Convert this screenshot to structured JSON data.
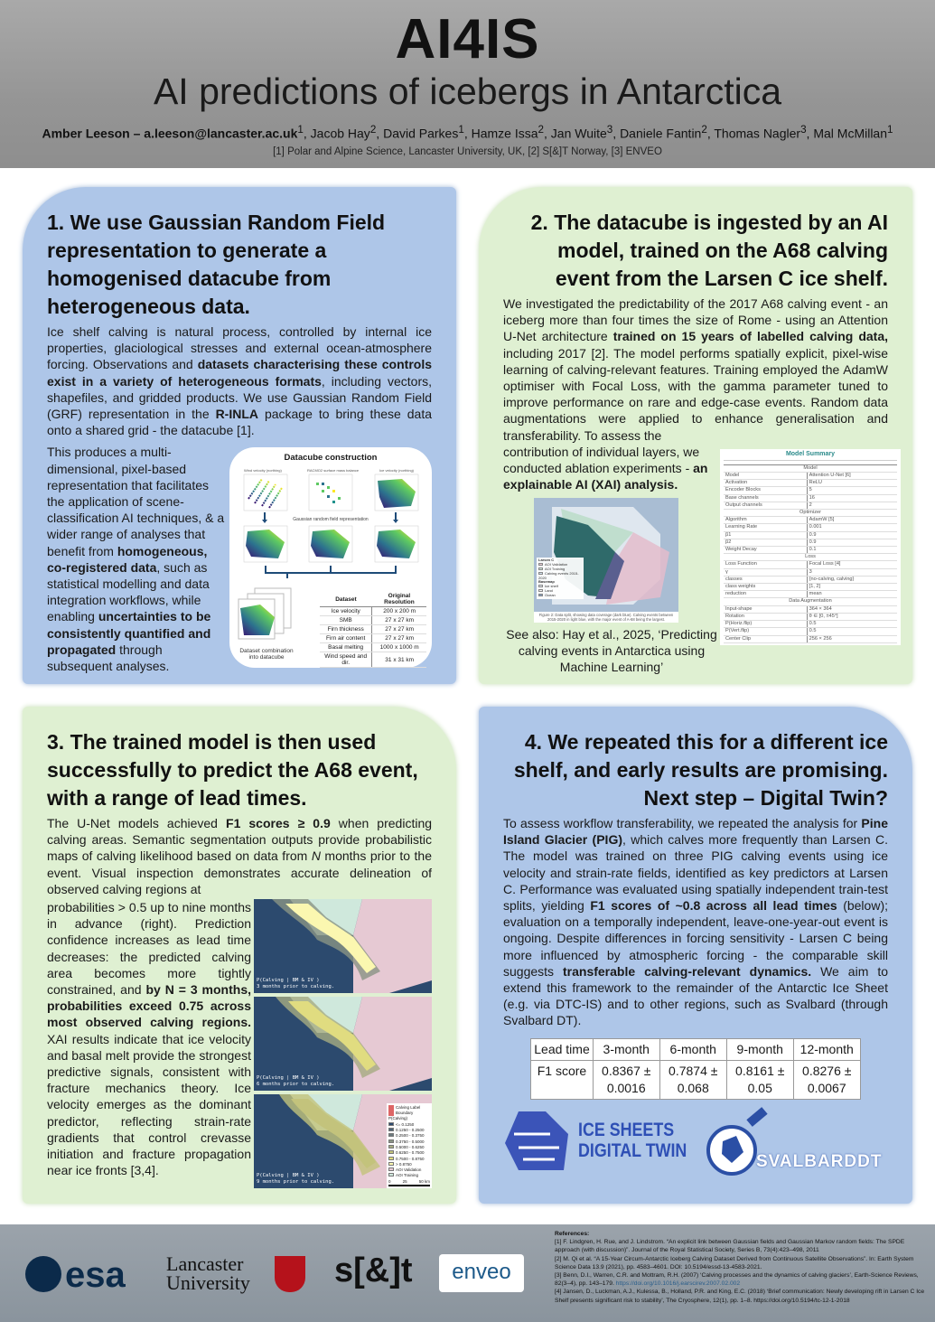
{
  "header": {
    "title": "AI4IS",
    "subtitle": "AI predictions of icebergs in Antarctica",
    "authors": [
      {
        "name": "Amber Leeson – a.leeson@lancaster.ac.uk",
        "sup": "1",
        "bold": true
      },
      {
        "name": "Jacob Hay",
        "sup": "2"
      },
      {
        "name": "David Parkes",
        "sup": "1"
      },
      {
        "name": "Hamze Issa",
        "sup": "2"
      },
      {
        "name": "Jan Wuite",
        "sup": "3"
      },
      {
        "name": "Daniele Fantin",
        "sup": "2"
      },
      {
        "name": "Thomas Nagler",
        "sup": "3"
      },
      {
        "name": "Mal McMillan",
        "sup": "1"
      }
    ],
    "affiliations": "[1] Polar and Alpine Science, Lancaster University, UK, [2] S[&]T Norway, [3] ENVEO"
  },
  "panel1": {
    "heading": "1. We use Gaussian Random Field representation to generate a homogenised datacube from heterogeneous data.",
    "para1": [
      {
        "t": "Ice shelf calving is natural process, controlled by internal ice properties, glaciological stresses and external ocean-atmosphere forcing. Observations and "
      },
      {
        "t": "datasets characterising these controls exist in a variety of heterogeneous formats",
        "b": true
      },
      {
        "t": ", including vectors, shapefiles, and gridded products. We use Gaussian Random Field (GRF) representation in the "
      },
      {
        "t": "R-INLA",
        "b": true
      },
      {
        "t": " package to bring these data onto a shared grid - the datacube [1]."
      }
    ],
    "para2": [
      {
        "t": "This produces a multi-dimensional, pixel-based representation that facilitates the application of scene-classification AI techniques, & a wider range of analyses that benefit from "
      },
      {
        "t": "homogeneous, co-registered data",
        "b": true
      },
      {
        "t": ", such as statistical modelling and data integration workflows, while enabling "
      },
      {
        "t": "uncertainties to be consistently quantified and propagated",
        "b": true
      },
      {
        "t": " through subsequent analyses."
      }
    ],
    "figure": {
      "title": "Datacube construction",
      "panels": [
        "Wind velocity (northing)",
        "RACMO2 surface mass balance",
        "Ice velocity (northing)"
      ],
      "grf_label": "Gaussian random field representation",
      "combo_label": "Dataset combination into datacube",
      "table": {
        "headers": [
          "Dataset",
          "Original Resolution"
        ],
        "rows": [
          [
            "Ice velocity",
            "200 x 200 m"
          ],
          [
            "SMB",
            "27 x 27 km"
          ],
          [
            "Firn thickness",
            "27 x 27 km"
          ],
          [
            "Firn air content",
            "27 x 27 km"
          ],
          [
            "Basal melting",
            "1000 x 1000 m"
          ],
          [
            "Wind speed and dir.",
            "31 x 31 km"
          ]
        ]
      }
    }
  },
  "panel2": {
    "heading": "2. The datacube is ingested by an AI model, trained on the A68 calving event from the Larsen C ice shelf.",
    "para1": [
      {
        "t": "We investigated the predictability of the 2017 A68 calving event - an iceberg more than four times the size of Rome - using an Attention U-Net architecture "
      },
      {
        "t": "trained on 15 years of labelled calving data,",
        "b": true
      },
      {
        "t": " including 2017 [2]. The model performs spatially explicit, pixel-wise learning of calving-relevant features. Training employed the AdamW optimiser with Focal Loss, with the gamma parameter tuned to improve performance on rare and edge-case events. Random data augmentations were applied to enhance generalisation and transferability. To assess the"
      }
    ],
    "para2": [
      {
        "t": "contribution of individual layers, we conducted ablation experiments - "
      },
      {
        "t": "an explainable AI (XAI) analysis.",
        "b": true
      }
    ],
    "figure_caption": "Figure 2: Data split, showing data coverage (dark blue). Calving events between 2015-2020 in light blue, with the major event of A-68 being the largest.",
    "map_legend": [
      "Larsen C",
      "AOI Validation",
      "AOI Training",
      "Calving events 2015-2020",
      "Basemap",
      "Ice shelf",
      "Land",
      "Ocean"
    ],
    "see_also": "See also: Hay et al., 2025, ‘Predicting calving events in Antarctica using Machine Learning’",
    "model_summary": {
      "title": "Model Summary",
      "sections": [
        {
          "title": "Model",
          "rows": [
            [
              "Model",
              "Attention U-Net [6]"
            ],
            [
              "Activation",
              "ReLU"
            ],
            [
              "Encoder Blocks",
              "5"
            ],
            [
              "Base channels",
              "16"
            ],
            [
              "Output channels",
              "2"
            ]
          ]
        },
        {
          "title": "Optimizer",
          "rows": [
            [
              "Algorithm",
              "AdamW [5]"
            ],
            [
              "Learning Rate",
              "0.001"
            ],
            [
              "β1",
              "0.9"
            ],
            [
              "β2",
              "0.9"
            ],
            [
              "Weight Decay",
              "0.1"
            ]
          ]
        },
        {
          "title": "Loss",
          "rows": [
            [
              "Loss Function",
              "Focal Loss [4]"
            ],
            [
              "γ",
              "3"
            ],
            [
              "classes",
              "{no-calving, calving}"
            ],
            [
              "class weights",
              "[1, 2]"
            ],
            [
              "reduction",
              "mean"
            ]
          ]
        },
        {
          "title": "Data Augmentation",
          "rows": [
            [
              "Input-shape",
              "364 × 364"
            ],
            [
              "Rotation",
              "θ ∈ [0, ±45°]"
            ],
            [
              "P(Horiz.flip)",
              "0.5"
            ],
            [
              "P(Vert.flip)",
              "0.5"
            ],
            [
              "Center Clip",
              "256 × 256"
            ]
          ]
        }
      ]
    }
  },
  "panel3": {
    "heading": "3. The trained model is then used successfully to predict the A68 event, with a range of lead times.",
    "para1": [
      {
        "t": "The U-Net models achieved "
      },
      {
        "t": "F1 scores ≥ 0.9",
        "b": true
      },
      {
        "t": " when predicting calving areas. Semantic segmentation outputs provide probabilistic maps of calving likelihood based on data from "
      },
      {
        "t": "N",
        "i": true
      },
      {
        "t": " months prior to the event. Visual inspection demonstrates accurate delineation of observed calving regions at"
      }
    ],
    "para2": [
      {
        "t": "probabilities > 0.5 up to nine months in advance (right). Prediction confidence increases as lead time decreases: the predicted calving area becomes more tightly constrained, and "
      },
      {
        "t": "by N = 3 months, probabilities exceed 0.75 across most observed calving regions.",
        "b": true
      },
      {
        "t": " XAI results indicate that ice velocity and basal melt provide the strongest predictive signals, consistent with fracture mechanics theory. Ice velocity emerges as the dominant predictor, reflecting strain-rate gradients that control crevasse initiation and fracture propagation near ice fronts [3,4]."
      }
    ],
    "maps": [
      {
        "label1": "P(Calving | BM & IV )",
        "label2": "3 months prior to calving."
      },
      {
        "label1": "P(Calving | BM & IV )",
        "label2": "6 months prior to calving."
      },
      {
        "label1": "P(Calving | BM & IV )",
        "label2": "9 months prior to calving."
      }
    ],
    "legend": {
      "boundary": "Calving Label Boundary",
      "title": "P(Calving)",
      "classes": [
        "<= 0.1250",
        "0.1250 - 0.2500",
        "0.2500 - 0.3750",
        "0.3750 - 0.5000",
        "0.5000 - 0.6250",
        "0.6250 - 0.7500",
        "0.7500 - 0.8750",
        "> 0.8750",
        "AOI Validation",
        "AOI Training"
      ],
      "colors": [
        "#2c4a6e",
        "#4d6377",
        "#6b7b80",
        "#8a9485",
        "#a6ab82",
        "#c3c37c",
        "#e0dc80",
        "#fbf7b0",
        "#e6c9d3",
        "#cfe8dc"
      ],
      "scale": [
        "0",
        "25",
        "50 km"
      ]
    }
  },
  "panel4": {
    "heading": "4. We repeated this for a different ice shelf, and early results are promising. Next step – Digital Twin?",
    "para1": [
      {
        "t": "To assess workflow transferability, we repeated the analysis for "
      },
      {
        "t": "Pine Island Glacier (PIG)",
        "b": true
      },
      {
        "t": ", which calves more frequently than Larsen C. The model was trained on three PIG calving events using ice velocity and strain-rate fields, identified as key predictors at Larsen C. Performance was evaluated using spatially independent train-test splits, yielding "
      },
      {
        "t": "F1 scores of ~0.8 across all lead times",
        "b": true
      },
      {
        "t": " (below); evaluation on a temporally independent, leave-one-year-out event is ongoing. Despite differences in forcing sensitivity - Larsen C being more influenced by atmospheric forcing - the comparable skill suggests "
      },
      {
        "t": "transferable calving-relevant dynamics.",
        "b": true
      },
      {
        "t": " We aim to extend this framework to the remainder of the Antarctic Ice Sheet (e.g. via DTC-IS) and to other regions, such as Svalbard (through Svalbard DT)."
      }
    ],
    "table": {
      "headers": [
        "Lead time",
        "3-month",
        "6-month",
        "9-month",
        "12-month"
      ],
      "row_label": "F1 score",
      "values": [
        "0.8367 ± 0.0016",
        "0.7874 ± 0.068",
        "0.8161 ± 0.05",
        "0.8276 ± 0.0067"
      ]
    },
    "logos": {
      "dtcis": [
        "ICE SHEETS",
        "DIGITAL TWIN"
      ],
      "svalbard": "SVALBARDDT"
    }
  },
  "footer": {
    "logos": {
      "esa": "esa",
      "lancaster": [
        "Lancaster",
        "University"
      ],
      "st": "s[&]t",
      "enveo": "enveo"
    },
    "references_title": "References:",
    "references": [
      {
        "t": "[1] F. Lindgren, H. Rue, and J. Lindstrom. “An explicit link between Gaussian fields and Gaussian Markov random fields: The SPDE approach (with discussion)”. Journal of the Royal Statistical Society, Series B, 73(4):423–498, 2011"
      },
      {
        "t": "[2] M. Qi et al. “A 15-Year Circum-Antarctic Iceberg Calving Dataset Derived from Continuous Satellite Observations”. In: Earth System Science Data 13.9 (2021), pp. 4583–4601. DOI: 10.5194/essd-13-4583-2021."
      },
      {
        "t": "[3] Benn, D.I., Warren, C.R. and Mottram, R.H. (2007) ‘Calving processes and the dynamics of calving glaciers’, Earth-Science Reviews, 82(3–4), pp. 143–179. ",
        "link": "https://doi.org/10.1016/j.earscirev.2007.02.002"
      },
      {
        "t": "[4] Jansen, D., Luckman, A.J., Kulessa, B., Holland, P.R. and King, E.C. (2018) ‘Brief communication: Newly developing rift in Larsen C Ice Shelf presents significant risk to stability’, The Cryosphere, 12(1), pp. 1–8. https://doi.org/10.5194/tc-12-1-2018"
      }
    ]
  }
}
